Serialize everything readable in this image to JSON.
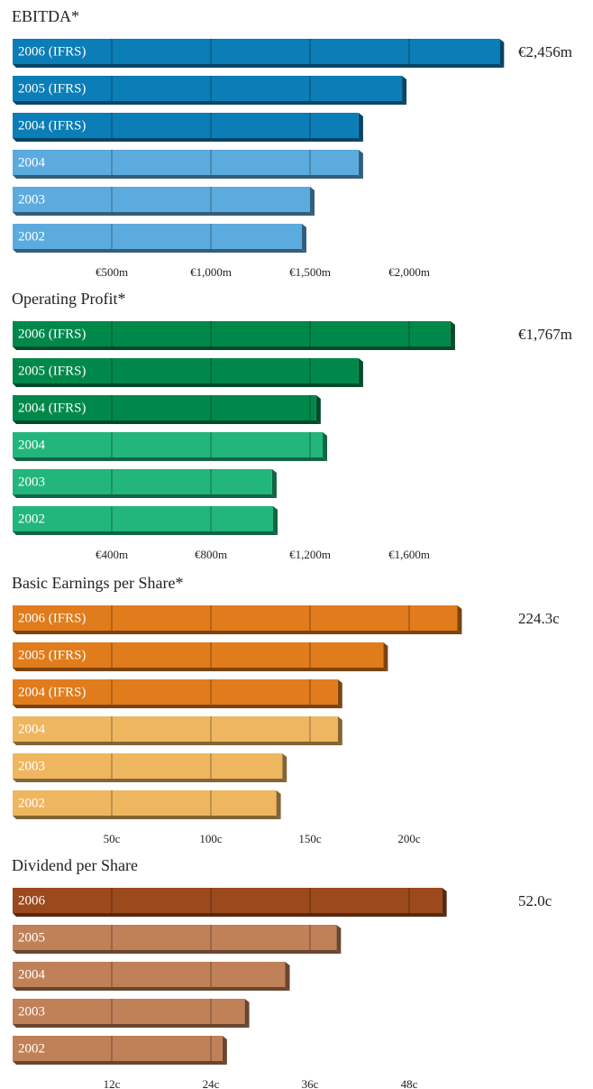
{
  "chart_data": [
    {
      "type": "bar",
      "title": "EBITDA*",
      "categories": [
        "2006 (IFRS)",
        "2005 (IFRS)",
        "2004 (IFRS)",
        "2004",
        "2003",
        "2002"
      ],
      "values": [
        2456,
        1964,
        1745,
        1745,
        1500,
        1459
      ],
      "value_labels": [
        "€2,456m",
        null,
        null,
        null,
        null,
        null
      ],
      "colors": [
        "#0b7db7",
        "#0b7db7",
        "#0b7db7",
        "#5cabdf",
        "#5cabdf",
        "#5cabdf"
      ],
      "xlim": [
        0,
        2500
      ],
      "xticks": [
        {
          "value": 500,
          "label": "€500m"
        },
        {
          "value": 1000,
          "label": "€1,000m"
        },
        {
          "value": 1500,
          "label": "€1,500m"
        },
        {
          "value": 2000,
          "label": "€2,000m"
        }
      ]
    },
    {
      "type": "bar",
      "title": "Operating Profit*",
      "categories": [
        "2006 (IFRS)",
        "2005 (IFRS)",
        "2004 (IFRS)",
        "2004",
        "2003",
        "2002"
      ],
      "values": [
        1767,
        1396,
        1225,
        1251,
        1047,
        1051
      ],
      "value_labels": [
        "€1,767m",
        null,
        null,
        null,
        null,
        null
      ],
      "colors": [
        "#00884b",
        "#00884b",
        "#00884b",
        "#22b67c",
        "#22b67c",
        "#22b67c"
      ],
      "xlim": [
        0,
        2000
      ],
      "xticks": [
        {
          "value": 400,
          "label": "€400m"
        },
        {
          "value": 800,
          "label": "€800m"
        },
        {
          "value": 1200,
          "label": "€1,200m"
        },
        {
          "value": 1600,
          "label": "€1,600m"
        }
      ]
    },
    {
      "type": "bar",
      "title": "Basic Earnings per Share*",
      "categories": [
        "2006 (IFRS)",
        "2005 (IFRS)",
        "2004 (IFRS)",
        "2004",
        "2003",
        "2002"
      ],
      "values": [
        224.3,
        187,
        164,
        164,
        136,
        133
      ],
      "value_labels": [
        "224.3c",
        null,
        null,
        null,
        null,
        null
      ],
      "colors": [
        "#e07c1c",
        "#e07c1c",
        "#e07c1c",
        "#efb660",
        "#efb660",
        "#efb660"
      ],
      "xlim": [
        0,
        250
      ],
      "xticks": [
        {
          "value": 50,
          "label": "50c"
        },
        {
          "value": 100,
          "label": "100c"
        },
        {
          "value": 150,
          "label": "150c"
        },
        {
          "value": 200,
          "label": "200c"
        }
      ]
    },
    {
      "type": "bar",
      "title": "Dividend per Share",
      "categories": [
        "2006",
        "2005",
        "2004",
        "2003",
        "2002"
      ],
      "values": [
        52.0,
        39.2,
        33.0,
        28.1,
        25.4
      ],
      "value_labels": [
        "52.0c",
        null,
        null,
        null,
        null
      ],
      "colors": [
        "#9c4a1d",
        "#c08058",
        "#c08058",
        "#c08058",
        "#c08058"
      ],
      "xlim": [
        0,
        60
      ],
      "xticks": [
        {
          "value": 12,
          "label": "12c"
        },
        {
          "value": 24,
          "label": "24c"
        },
        {
          "value": 36,
          "label": "36c"
        },
        {
          "value": 48,
          "label": "48c"
        }
      ]
    }
  ]
}
